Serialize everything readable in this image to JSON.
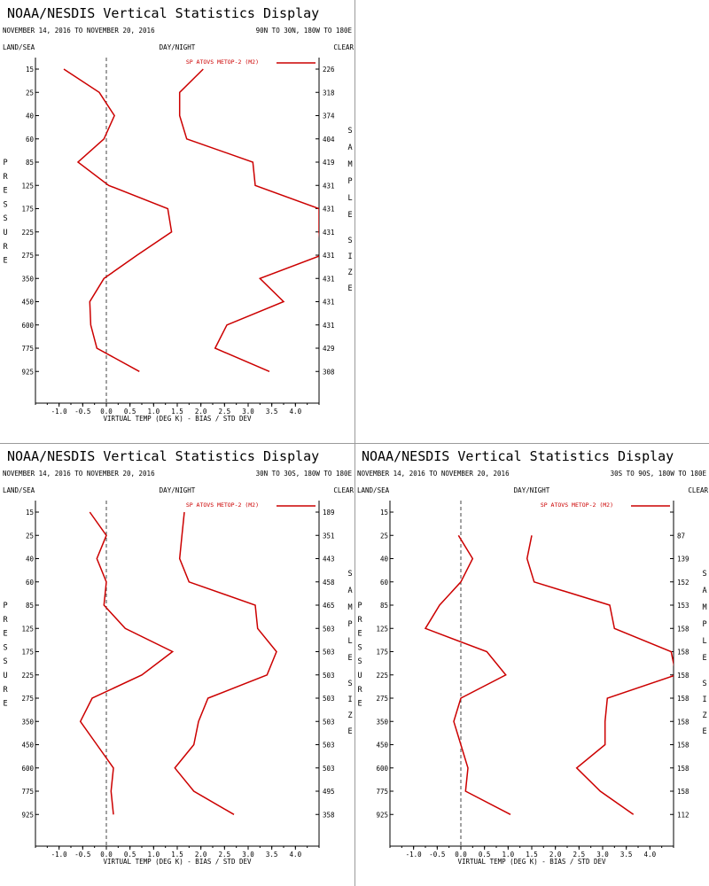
{
  "chart_data": [
    {
      "type": "line",
      "title": "NOAA/NESDIS Vertical Statistics Display",
      "date_range": "NOVEMBER 14, 2016 TO NOVEMBER 20, 2016",
      "region": "90N TO 30N, 180W TO 180E",
      "left_label": "LAND/SEA",
      "center_label": "DAY/NIGHT",
      "right_label": "CLEAR",
      "left_axis_label": "PRESSURE",
      "right_axis_label": "SAMPLE SIZE",
      "xlabel": "VIRTUAL TEMP (DEG K) - BIAS / STD DEV",
      "xlim": [
        -1.5,
        4.5
      ],
      "xticks": [
        -1.0,
        -0.5,
        0.0,
        0.5,
        1.0,
        1.5,
        2.0,
        2.5,
        3.0,
        3.5,
        4.0
      ],
      "xtick_labels": [
        "-1.0",
        "-0.5",
        "0.0",
        "0.5",
        "1.0",
        "1.5",
        "2.0",
        "2.5",
        "3.0",
        "3.5",
        "4.0"
      ],
      "pressure_levels": [
        "15",
        "25",
        "40",
        "60",
        "85",
        "125",
        "175",
        "225",
        "275",
        "350",
        "450",
        "600",
        "775",
        "925"
      ],
      "sample_sizes": [
        "226",
        "318",
        "374",
        "404",
        "419",
        "431",
        "431",
        "431",
        "431",
        "431",
        "431",
        "431",
        "429",
        "308"
      ],
      "legend": "SP ATOVS METOP-2 (M2)",
      "line_color": "#cc0000",
      "series": [
        {
          "kind": "bias",
          "values": [
            -0.9,
            -0.15,
            0.17,
            -0.05,
            -0.6,
            0.05,
            1.3,
            1.38,
            0.65,
            -0.05,
            -0.35,
            -0.33,
            -0.2,
            0.7
          ]
        },
        {
          "kind": "stddev",
          "values": [
            2.05,
            1.55,
            1.55,
            1.7,
            3.1,
            3.15,
            4.5,
            4.5,
            4.55,
            3.25,
            3.75,
            2.55,
            2.3,
            3.45
          ]
        }
      ]
    },
    {
      "type": "line",
      "title": "NOAA/NESDIS Vertical Statistics Display",
      "date_range": "NOVEMBER 14, 2016 TO NOVEMBER 20, 2016",
      "region": "30N TO 30S, 180W TO 180E",
      "left_label": "LAND/SEA",
      "center_label": "DAY/NIGHT",
      "right_label": "CLEAR",
      "left_axis_label": "PRESSURE",
      "right_axis_label": "SAMPLE SIZE",
      "xlabel": "VIRTUAL TEMP (DEG K) - BIAS / STD DEV",
      "xlim": [
        -1.5,
        4.5
      ],
      "xticks": [
        -1.0,
        -0.5,
        0.0,
        0.5,
        1.0,
        1.5,
        2.0,
        2.5,
        3.0,
        3.5,
        4.0
      ],
      "xtick_labels": [
        "-1.0",
        "-0.5",
        "0.0",
        "0.5",
        "1.0",
        "1.5",
        "2.0",
        "2.5",
        "3.0",
        "3.5",
        "4.0"
      ],
      "pressure_levels": [
        "15",
        "25",
        "40",
        "60",
        "85",
        "125",
        "175",
        "225",
        "275",
        "350",
        "450",
        "600",
        "775",
        "925"
      ],
      "sample_sizes": [
        "189",
        "351",
        "443",
        "458",
        "465",
        "503",
        "503",
        "503",
        "503",
        "503",
        "503",
        "503",
        "495",
        "358"
      ],
      "legend": "SP ATOVS METOP-2 (M2)",
      "line_color": "#cc0000",
      "series": [
        {
          "kind": "bias",
          "values": [
            -0.35,
            0.0,
            -0.2,
            0.0,
            -0.05,
            0.4,
            1.4,
            0.75,
            -0.3,
            -0.55,
            -0.2,
            0.15,
            0.1,
            0.15
          ]
        },
        {
          "kind": "stddev",
          "values": [
            1.65,
            1.6,
            1.55,
            1.75,
            3.15,
            3.2,
            3.6,
            3.4,
            2.15,
            1.95,
            1.85,
            1.45,
            1.85,
            2.7
          ]
        }
      ]
    },
    {
      "type": "line",
      "title": "NOAA/NESDIS Vertical Statistics Display",
      "date_range": "NOVEMBER 14, 2016 TO NOVEMBER 20, 2016",
      "region": "30S TO 90S, 180W TO 180E",
      "left_label": "LAND/SEA",
      "center_label": "DAY/NIGHT",
      "right_label": "CLEAR",
      "left_axis_label": "PRESSURE",
      "right_axis_label": "SAMPLE SIZE",
      "xlabel": "VIRTUAL TEMP (DEG K) - BIAS / STD DEV",
      "xlim": [
        -1.5,
        4.5
      ],
      "xticks": [
        -1.0,
        -0.5,
        0.0,
        0.5,
        1.0,
        1.5,
        2.0,
        2.5,
        3.0,
        3.5,
        4.0
      ],
      "xtick_labels": [
        "-1.0",
        "-0.5",
        "0.0",
        "0.5",
        "1.0",
        "1.5",
        "2.0",
        "2.5",
        "3.0",
        "3.5",
        "4.0"
      ],
      "pressure_levels": [
        "15",
        "25",
        "40",
        "60",
        "85",
        "125",
        "175",
        "225",
        "275",
        "350",
        "450",
        "600",
        "775",
        "925"
      ],
      "sample_sizes": [
        "",
        "87",
        "139",
        "152",
        "153",
        "158",
        "158",
        "158",
        "158",
        "158",
        "158",
        "158",
        "158",
        "112"
      ],
      "legend": "SP ATOVS METOP-2 (M2)",
      "line_color": "#cc0000",
      "series": [
        {
          "kind": "bias",
          "values": [
            null,
            -0.05,
            0.25,
            0.0,
            -0.45,
            -0.75,
            0.55,
            0.95,
            0.0,
            -0.15,
            0.0,
            0.15,
            0.1,
            1.05
          ]
        },
        {
          "kind": "stddev",
          "values": [
            null,
            1.5,
            1.4,
            1.55,
            3.15,
            3.25,
            4.45,
            4.55,
            3.1,
            3.05,
            3.05,
            2.45,
            2.95,
            3.65
          ]
        }
      ]
    }
  ]
}
